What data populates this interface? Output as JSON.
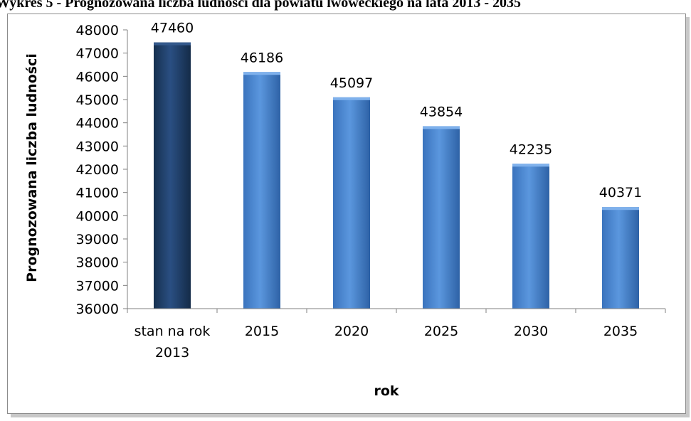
{
  "document": {
    "title": "Wykres 5 - Prognozowana liczba ludności dla powiatu lwóweckiego na lata 2013 - 2035"
  },
  "chart_data": {
    "type": "bar",
    "title": "",
    "xlabel": "rok",
    "ylabel": "Prognozowana liczba ludności",
    "categories": [
      [
        "stan na rok",
        "2013"
      ],
      [
        "2015"
      ],
      [
        "2020"
      ],
      [
        "2025"
      ],
      [
        "2030"
      ],
      [
        "2035"
      ]
    ],
    "values": [
      47460,
      46186,
      45097,
      43854,
      42235,
      40371
    ],
    "data_labels": [
      "47460",
      "46186",
      "45097",
      "43854",
      "42235",
      "40371"
    ],
    "ylim": [
      36000,
      48000
    ],
    "yticks": [
      36000,
      37000,
      38000,
      39000,
      40000,
      41000,
      42000,
      43000,
      44000,
      45000,
      46000,
      47000,
      48000
    ],
    "grid": false,
    "legend": "none",
    "colors": {
      "highlight_bar": "#1f3d66",
      "bar": "#4a86d0",
      "axis": "#808080"
    }
  }
}
